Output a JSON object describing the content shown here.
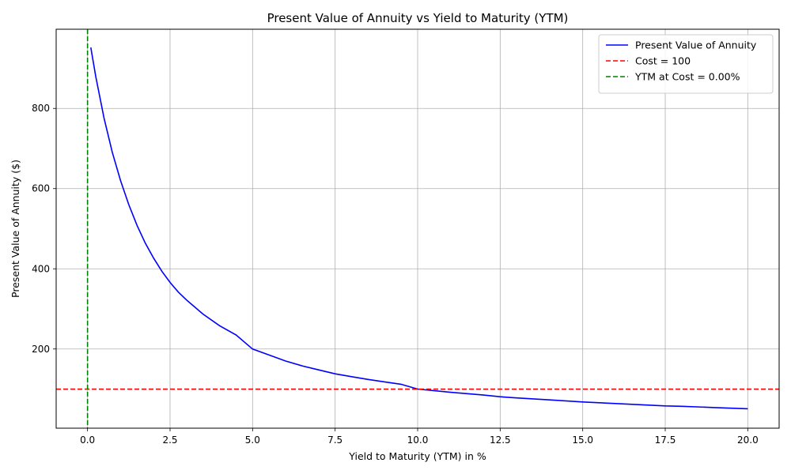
{
  "chart_data": {
    "type": "line",
    "title": "Present Value of Annuity vs Yield to Maturity (YTM)",
    "xlabel": "Yield to Maturity (YTM) in %",
    "ylabel": "Present Value of Annuity ($)",
    "xlim": [
      -0.95,
      20.95
    ],
    "ylim": [
      2.5,
      997.5
    ],
    "xticks": [
      0.0,
      2.5,
      5.0,
      7.5,
      10.0,
      12.5,
      15.0,
      17.5,
      20.0
    ],
    "xtick_labels": [
      "0.0",
      "2.5",
      "5.0",
      "7.5",
      "10.0",
      "12.5",
      "15.0",
      "17.5",
      "20.0"
    ],
    "yticks": [
      200,
      400,
      600,
      800
    ],
    "ytick_labels": [
      "200",
      "400",
      "600",
      "800"
    ],
    "grid": true,
    "legend_position": "top-right",
    "series": [
      {
        "name": "Present Value of Annuity",
        "color": "#0000ff",
        "style": "solid",
        "x": [
          0.1,
          0.25,
          0.5,
          0.75,
          1.0,
          1.25,
          1.5,
          1.75,
          2.0,
          2.25,
          2.5,
          2.75,
          3.0,
          3.5,
          4.0,
          4.5,
          5.0,
          5.5,
          6.0,
          6.5,
          7.0,
          7.5,
          8.0,
          8.5,
          9.0,
          9.5,
          10.0,
          11.0,
          12.0,
          12.5,
          13.0,
          14.0,
          15.0,
          16.0,
          17.0,
          17.5,
          18.0,
          19.0,
          20.0
        ],
        "y": [
          952,
          879,
          776,
          691,
          620,
          560,
          508,
          464,
          427,
          394,
          366,
          342,
          322,
          287,
          258,
          235,
          200,
          185,
          170,
          158,
          148,
          138,
          131,
          124,
          118,
          112,
          100,
          92,
          85,
          81,
          78,
          73,
          68,
          64,
          60,
          58,
          57,
          54,
          51
        ]
      },
      {
        "name": "Cost = 100",
        "color": "#ff0000",
        "style": "dashed",
        "orientation": "horizontal",
        "value": 100
      },
      {
        "name": "YTM at Cost = 0.00%",
        "color": "#008000",
        "style": "dashed",
        "orientation": "vertical",
        "value": 0.0
      }
    ]
  }
}
